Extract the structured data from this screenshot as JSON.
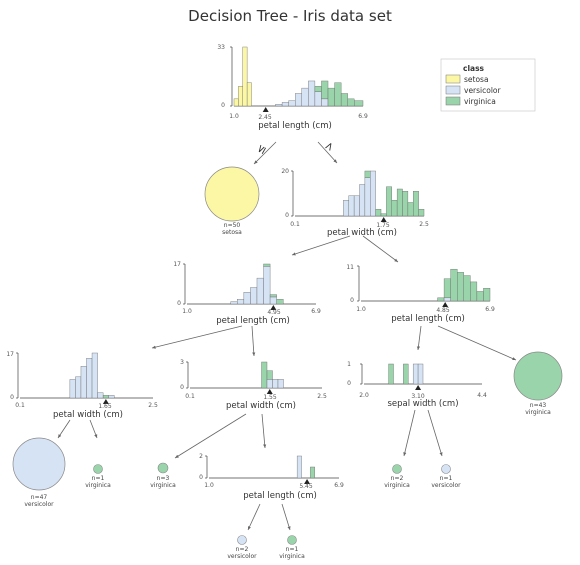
{
  "title": "Decision Tree - Iris data set",
  "colors": {
    "setosa": "#fbf7a4",
    "versicolor": "#d5e3f5",
    "virginica": "#99d4aa",
    "bar_stroke": "#6a6a6a",
    "axis": "#444444",
    "arrow": "#666666"
  },
  "legend": {
    "title": "class",
    "items": [
      {
        "label": "setosa",
        "color_key": "setosa"
      },
      {
        "label": "versicolor",
        "color_key": "versicolor"
      },
      {
        "label": "virginica",
        "color_key": "virginica"
      }
    ]
  },
  "split_labels": {
    "le": "≤",
    "gt": ">"
  },
  "nodes": {
    "root": {
      "feature": "petal length (cm)",
      "ticks": [
        "1.0",
        "2.45",
        "6.9"
      ],
      "yticks": [
        "33",
        "0"
      ],
      "threshold": "2.45"
    },
    "n1": {
      "feature": "petal width (cm)",
      "ticks": [
        "0.1",
        "1.75",
        "2.5"
      ],
      "yticks": [
        "20",
        "0"
      ],
      "threshold": "1.75"
    },
    "n2": {
      "feature": "petal length (cm)",
      "ticks": [
        "1.0",
        "4.95",
        "6.9"
      ],
      "yticks": [
        "17",
        "0"
      ],
      "threshold": "4.95"
    },
    "n3": {
      "feature": "petal length (cm)",
      "ticks": [
        "1.0",
        "4.85",
        "6.9"
      ],
      "yticks": [
        "11",
        "0"
      ],
      "threshold": "4.85"
    },
    "n4": {
      "feature": "petal width (cm)",
      "ticks": [
        "0.1",
        "1.65",
        "2.5"
      ],
      "yticks": [
        "17",
        "0"
      ],
      "threshold": "1.65"
    },
    "n5": {
      "feature": "petal width (cm)",
      "ticks": [
        "0.1",
        "1.55",
        "2.5"
      ],
      "yticks": [
        "3",
        "0"
      ],
      "threshold": "1.55"
    },
    "n6": {
      "feature": "sepal width (cm)",
      "ticks": [
        "2.0",
        "3.10",
        "4.4"
      ],
      "yticks": [
        "1",
        "0"
      ],
      "threshold": "3.10"
    },
    "n7": {
      "feature": "petal length (cm)",
      "ticks": [
        "1.0",
        "5.45",
        "6.9"
      ],
      "yticks": [
        "2",
        "0"
      ],
      "threshold": "5.45"
    }
  },
  "leaves": {
    "l_setosa": {
      "n": "n=50",
      "cls": "setosa",
      "color_key": "setosa"
    },
    "l_virg43": {
      "n": "n=43",
      "cls": "virginica",
      "color_key": "virginica"
    },
    "l_vers47": {
      "n": "n=47",
      "cls": "versicolor",
      "color_key": "versicolor"
    },
    "l_virg1a": {
      "n": "n=1",
      "cls": "virginica",
      "color_key": "virginica"
    },
    "l_virg3": {
      "n": "n=3",
      "cls": "virginica",
      "color_key": "virginica"
    },
    "l_virg2": {
      "n": "n=2",
      "cls": "virginica",
      "color_key": "virginica"
    },
    "l_vers1": {
      "n": "n=1",
      "cls": "versicolor",
      "color_key": "versicolor"
    },
    "l_vers2": {
      "n": "n=2",
      "cls": "versicolor",
      "color_key": "versicolor"
    },
    "l_virg1b": {
      "n": "n=1",
      "cls": "virginica",
      "color_key": "virginica"
    }
  },
  "chart_data": [
    {
      "type": "bar",
      "node": "root",
      "xlabel": "petal length (cm)",
      "xlim": [
        1.0,
        6.9
      ],
      "ylim": [
        0,
        33
      ],
      "threshold": 2.45,
      "bins": [
        {
          "x0": 1.0,
          "x1": 1.2,
          "setosa": 4,
          "versicolor": 0,
          "virginica": 0
        },
        {
          "x0": 1.2,
          "x1": 1.4,
          "setosa": 11,
          "versicolor": 0,
          "virginica": 0
        },
        {
          "x0": 1.4,
          "x1": 1.6,
          "setosa": 33,
          "versicolor": 0,
          "virginica": 0
        },
        {
          "x0": 1.6,
          "x1": 1.8,
          "setosa": 13,
          "versicolor": 0,
          "virginica": 0
        },
        {
          "x0": 2.9,
          "x1": 3.2,
          "setosa": 0,
          "versicolor": 1,
          "virginica": 0
        },
        {
          "x0": 3.2,
          "x1": 3.5,
          "setosa": 0,
          "versicolor": 2,
          "virginica": 0
        },
        {
          "x0": 3.5,
          "x1": 3.8,
          "setosa": 0,
          "versicolor": 3,
          "virginica": 0
        },
        {
          "x0": 3.8,
          "x1": 4.1,
          "setosa": 0,
          "versicolor": 7,
          "virginica": 0
        },
        {
          "x0": 4.1,
          "x1": 4.4,
          "setosa": 0,
          "versicolor": 10,
          "virginica": 0
        },
        {
          "x0": 4.4,
          "x1": 4.7,
          "setosa": 0,
          "versicolor": 14,
          "virginica": 0
        },
        {
          "x0": 4.7,
          "x1": 5.0,
          "setosa": 0,
          "versicolor": 8,
          "virginica": 3
        },
        {
          "x0": 5.0,
          "x1": 5.3,
          "setosa": 0,
          "versicolor": 4,
          "virginica": 10
        },
        {
          "x0": 5.3,
          "x1": 5.6,
          "setosa": 0,
          "versicolor": 0,
          "virginica": 10
        },
        {
          "x0": 5.6,
          "x1": 5.9,
          "setosa": 0,
          "versicolor": 0,
          "virginica": 13
        },
        {
          "x0": 5.9,
          "x1": 6.2,
          "setosa": 0,
          "versicolor": 0,
          "virginica": 7
        },
        {
          "x0": 6.2,
          "x1": 6.5,
          "setosa": 0,
          "versicolor": 0,
          "virginica": 4
        },
        {
          "x0": 6.5,
          "x1": 6.9,
          "setosa": 0,
          "versicolor": 0,
          "virginica": 3
        }
      ]
    },
    {
      "type": "bar",
      "node": "n1",
      "xlabel": "petal width (cm)",
      "xlim": [
        0.1,
        2.5
      ],
      "ylim": [
        0,
        20
      ],
      "threshold": 1.75,
      "bins": [
        {
          "x0": 1.0,
          "x1": 1.1,
          "versicolor": 7,
          "virginica": 0
        },
        {
          "x0": 1.1,
          "x1": 1.2,
          "versicolor": 9,
          "virginica": 0
        },
        {
          "x0": 1.2,
          "x1": 1.3,
          "versicolor": 9,
          "virginica": 0
        },
        {
          "x0": 1.3,
          "x1": 1.4,
          "versicolor": 14,
          "virginica": 0
        },
        {
          "x0": 1.4,
          "x1": 1.5,
          "versicolor": 17,
          "virginica": 3
        },
        {
          "x0": 1.5,
          "x1": 1.6,
          "versicolor": 20,
          "virginica": 0
        },
        {
          "x0": 1.6,
          "x1": 1.7,
          "versicolor": 0,
          "virginica": 3
        },
        {
          "x0": 1.7,
          "x1": 1.8,
          "versicolor": 0,
          "virginica": 1
        },
        {
          "x0": 1.8,
          "x1": 1.9,
          "versicolor": 0,
          "virginica": 13
        },
        {
          "x0": 1.9,
          "x1": 2.0,
          "versicolor": 0,
          "virginica": 7
        },
        {
          "x0": 2.0,
          "x1": 2.1,
          "versicolor": 0,
          "virginica": 12
        },
        {
          "x0": 2.1,
          "x1": 2.2,
          "versicolor": 0,
          "virginica": 11
        },
        {
          "x0": 2.2,
          "x1": 2.3,
          "versicolor": 0,
          "virginica": 6
        },
        {
          "x0": 2.3,
          "x1": 2.4,
          "versicolor": 0,
          "virginica": 11
        },
        {
          "x0": 2.4,
          "x1": 2.5,
          "versicolor": 0,
          "virginica": 3
        }
      ]
    },
    {
      "type": "bar",
      "node": "n2",
      "xlabel": "petal length (cm)",
      "xlim": [
        1.0,
        6.9
      ],
      "ylim": [
        0,
        17
      ],
      "threshold": 4.95,
      "bins": [
        {
          "x0": 3.0,
          "x1": 3.3,
          "versicolor": 1,
          "virginica": 0
        },
        {
          "x0": 3.3,
          "x1": 3.6,
          "versicolor": 2,
          "virginica": 0
        },
        {
          "x0": 3.6,
          "x1": 3.9,
          "versicolor": 5,
          "virginica": 0
        },
        {
          "x0": 3.9,
          "x1": 4.2,
          "versicolor": 7,
          "virginica": 0
        },
        {
          "x0": 4.2,
          "x1": 4.5,
          "versicolor": 11,
          "virginica": 0
        },
        {
          "x0": 4.5,
          "x1": 4.8,
          "versicolor": 16,
          "virginica": 1
        },
        {
          "x0": 4.8,
          "x1": 5.1,
          "versicolor": 3,
          "virginica": 1
        },
        {
          "x0": 5.1,
          "x1": 5.4,
          "versicolor": 0,
          "virginica": 2
        }
      ]
    },
    {
      "type": "bar",
      "node": "n3",
      "xlabel": "petal length (cm)",
      "xlim": [
        1.0,
        6.9
      ],
      "ylim": [
        0,
        11
      ],
      "threshold": 4.85,
      "bins": [
        {
          "x0": 4.5,
          "x1": 4.8,
          "versicolor": 0,
          "virginica": 1
        },
        {
          "x0": 4.8,
          "x1": 5.1,
          "versicolor": 1,
          "virginica": 6
        },
        {
          "x0": 5.1,
          "x1": 5.4,
          "versicolor": 0,
          "virginica": 10
        },
        {
          "x0": 5.4,
          "x1": 5.7,
          "versicolor": 0,
          "virginica": 9
        },
        {
          "x0": 5.7,
          "x1": 6.0,
          "versicolor": 0,
          "virginica": 8
        },
        {
          "x0": 6.0,
          "x1": 6.3,
          "versicolor": 0,
          "virginica": 6
        },
        {
          "x0": 6.3,
          "x1": 6.6,
          "versicolor": 0,
          "virginica": 3
        },
        {
          "x0": 6.6,
          "x1": 6.9,
          "versicolor": 0,
          "virginica": 4
        }
      ]
    },
    {
      "type": "bar",
      "node": "n4",
      "xlabel": "petal width (cm)",
      "xlim": [
        0.1,
        2.5
      ],
      "ylim": [
        0,
        17
      ],
      "threshold": 1.65,
      "bins": [
        {
          "x0": 1.0,
          "x1": 1.1,
          "versicolor": 7,
          "virginica": 0
        },
        {
          "x0": 1.1,
          "x1": 1.2,
          "versicolor": 8,
          "virginica": 0
        },
        {
          "x0": 1.2,
          "x1": 1.3,
          "versicolor": 12,
          "virginica": 0
        },
        {
          "x0": 1.3,
          "x1": 1.4,
          "versicolor": 15,
          "virginica": 0
        },
        {
          "x0": 1.4,
          "x1": 1.5,
          "versicolor": 17,
          "virginica": 0
        },
        {
          "x0": 1.5,
          "x1": 1.6,
          "versicolor": 2,
          "virginica": 0
        },
        {
          "x0": 1.6,
          "x1": 1.7,
          "versicolor": 0,
          "virginica": 1
        },
        {
          "x0": 1.7,
          "x1": 1.8,
          "versicolor": 1,
          "virginica": 0
        }
      ]
    },
    {
      "type": "bar",
      "node": "n5",
      "xlabel": "petal width (cm)",
      "xlim": [
        0.1,
        2.5
      ],
      "ylim": [
        0,
        3
      ],
      "threshold": 1.55,
      "bins": [
        {
          "x0": 1.4,
          "x1": 1.5,
          "versicolor": 0,
          "virginica": 3
        },
        {
          "x0": 1.5,
          "x1": 1.6,
          "versicolor": 1,
          "virginica": 1
        },
        {
          "x0": 1.6,
          "x1": 1.7,
          "versicolor": 1,
          "virginica": 0
        },
        {
          "x0": 1.7,
          "x1": 1.8,
          "versicolor": 1,
          "virginica": 0
        }
      ]
    },
    {
      "type": "bar",
      "node": "n6",
      "xlabel": "sepal width (cm)",
      "xlim": [
        2.0,
        4.4
      ],
      "ylim": [
        0,
        1
      ],
      "threshold": 3.1,
      "bins": [
        {
          "x0": 2.5,
          "x1": 2.6,
          "versicolor": 0,
          "virginica": 1
        },
        {
          "x0": 2.8,
          "x1": 2.9,
          "versicolor": 0,
          "virginica": 1
        },
        {
          "x0": 3.0,
          "x1": 3.1,
          "versicolor": 1,
          "virginica": 0
        },
        {
          "x0": 3.1,
          "x1": 3.2,
          "versicolor": 1,
          "virginica": 0
        }
      ]
    },
    {
      "type": "bar",
      "node": "n7",
      "xlabel": "petal length (cm)",
      "xlim": [
        1.0,
        6.9
      ],
      "ylim": [
        0,
        2
      ],
      "threshold": 5.45,
      "bins": [
        {
          "x0": 5.0,
          "x1": 5.2,
          "versicolor": 2,
          "virginica": 0
        },
        {
          "x0": 5.6,
          "x1": 5.8,
          "versicolor": 0,
          "virginica": 1
        }
      ]
    }
  ]
}
